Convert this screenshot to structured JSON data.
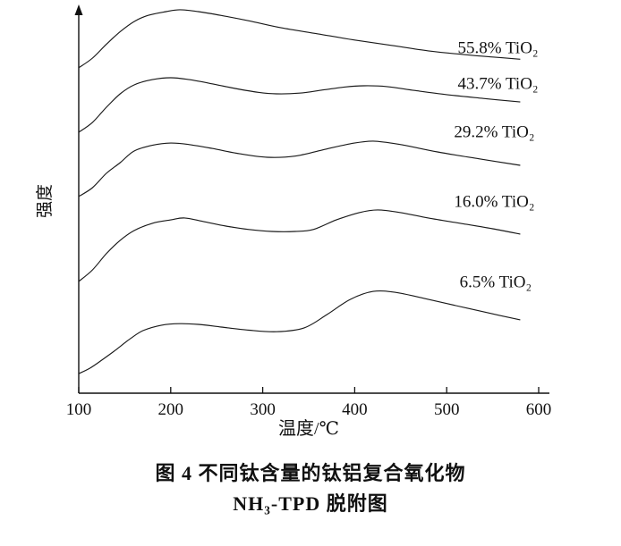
{
  "figure": {
    "caption_line1": "图 4  不同钛含量的钛铝复合氧化物",
    "caption_line2": "NH₃-TPD 脱附图"
  },
  "chart_data": {
    "type": "line",
    "title": "",
    "xlabel": "温度/℃",
    "ylabel": "强度",
    "xlim": [
      100,
      600
    ],
    "ylim": [
      0,
      1
    ],
    "x_ticks": [
      100,
      200,
      300,
      400,
      500,
      600
    ],
    "grid": false,
    "legend_position": "inline-right",
    "line_color": "#1a1a1a",
    "axis_color": "#111111",
    "series": [
      {
        "name": "55.8% TiO₂",
        "label_pos": {
          "x": 512,
          "v": 0.895
        },
        "points": [
          [
            100,
            0.847
          ],
          [
            115,
            0.872
          ],
          [
            130,
            0.908
          ],
          [
            145,
            0.941
          ],
          [
            160,
            0.967
          ],
          [
            175,
            0.983
          ],
          [
            195,
            0.993
          ],
          [
            210,
            0.998
          ],
          [
            230,
            0.993
          ],
          [
            255,
            0.983
          ],
          [
            285,
            0.969
          ],
          [
            320,
            0.951
          ],
          [
            360,
            0.935
          ],
          [
            400,
            0.919
          ],
          [
            440,
            0.905
          ],
          [
            480,
            0.891
          ],
          [
            520,
            0.881
          ],
          [
            550,
            0.875
          ],
          [
            580,
            0.869
          ]
        ]
      },
      {
        "name": "43.7% TiO₂",
        "label_pos": {
          "x": 512,
          "v": 0.802
        },
        "points": [
          [
            100,
            0.679
          ],
          [
            115,
            0.705
          ],
          [
            130,
            0.744
          ],
          [
            145,
            0.779
          ],
          [
            160,
            0.802
          ],
          [
            180,
            0.816
          ],
          [
            200,
            0.821
          ],
          [
            220,
            0.816
          ],
          [
            245,
            0.805
          ],
          [
            270,
            0.793
          ],
          [
            295,
            0.783
          ],
          [
            315,
            0.779
          ],
          [
            340,
            0.781
          ],
          [
            365,
            0.789
          ],
          [
            390,
            0.797
          ],
          [
            410,
            0.8
          ],
          [
            435,
            0.798
          ],
          [
            465,
            0.788
          ],
          [
            500,
            0.777
          ],
          [
            540,
            0.767
          ],
          [
            580,
            0.758
          ]
        ]
      },
      {
        "name": "29.2% TiO₂",
        "label_pos": {
          "x": 508,
          "v": 0.677
        },
        "points": [
          [
            100,
            0.512
          ],
          [
            115,
            0.535
          ],
          [
            130,
            0.572
          ],
          [
            145,
            0.6
          ],
          [
            160,
            0.63
          ],
          [
            180,
            0.645
          ],
          [
            200,
            0.651
          ],
          [
            220,
            0.647
          ],
          [
            245,
            0.637
          ],
          [
            275,
            0.623
          ],
          [
            305,
            0.614
          ],
          [
            335,
            0.617
          ],
          [
            365,
            0.633
          ],
          [
            395,
            0.649
          ],
          [
            420,
            0.656
          ],
          [
            450,
            0.647
          ],
          [
            490,
            0.628
          ],
          [
            535,
            0.61
          ],
          [
            580,
            0.593
          ]
        ]
      },
      {
        "name": "16.0% TiO₂",
        "label_pos": {
          "x": 508,
          "v": 0.495
        },
        "points": [
          [
            100,
            0.291
          ],
          [
            115,
            0.321
          ],
          [
            130,
            0.363
          ],
          [
            145,
            0.398
          ],
          [
            160,
            0.423
          ],
          [
            180,
            0.442
          ],
          [
            200,
            0.451
          ],
          [
            215,
            0.456
          ],
          [
            235,
            0.447
          ],
          [
            260,
            0.435
          ],
          [
            285,
            0.426
          ],
          [
            310,
            0.421
          ],
          [
            335,
            0.421
          ],
          [
            355,
            0.426
          ],
          [
            380,
            0.451
          ],
          [
            405,
            0.47
          ],
          [
            425,
            0.477
          ],
          [
            450,
            0.47
          ],
          [
            480,
            0.456
          ],
          [
            515,
            0.442
          ],
          [
            550,
            0.428
          ],
          [
            580,
            0.414
          ]
        ]
      },
      {
        "name": "6.5% TiO₂",
        "label_pos": {
          "x": 514,
          "v": 0.286
        },
        "points": [
          [
            100,
            0.051
          ],
          [
            112,
            0.065
          ],
          [
            125,
            0.086
          ],
          [
            140,
            0.112
          ],
          [
            155,
            0.14
          ],
          [
            170,
            0.163
          ],
          [
            190,
            0.177
          ],
          [
            210,
            0.181
          ],
          [
            230,
            0.179
          ],
          [
            255,
            0.172
          ],
          [
            285,
            0.164
          ],
          [
            315,
            0.16
          ],
          [
            345,
            0.17
          ],
          [
            370,
            0.205
          ],
          [
            395,
            0.244
          ],
          [
            420,
            0.265
          ],
          [
            445,
            0.262
          ],
          [
            475,
            0.247
          ],
          [
            510,
            0.228
          ],
          [
            545,
            0.209
          ],
          [
            580,
            0.191
          ]
        ]
      }
    ]
  }
}
